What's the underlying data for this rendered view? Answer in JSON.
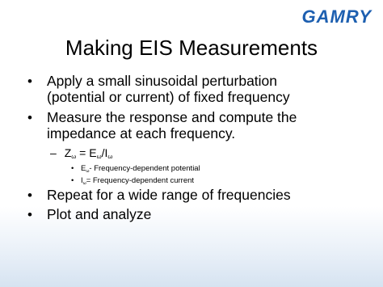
{
  "logo": "GAMRY",
  "title": "Making EIS Measurements",
  "bullets": [
    {
      "lines": [
        "Apply a small sinusoidal perturbation",
        "(potential or current) of fixed frequency"
      ]
    },
    {
      "lines": [
        "Measure the response and compute the",
        "impedance at each frequency."
      ]
    },
    {
      "lines": [
        "Repeat for a wide range of frequencies"
      ]
    },
    {
      "lines": [
        "Plot and analyze"
      ]
    }
  ],
  "formula": [
    "Z",
    "ω",
    " = E",
    "ω",
    "/I",
    "ω"
  ],
  "definitions": [
    {
      "symbol": "E",
      "subscript": "ω",
      "text": "- Frequency-dependent potential"
    },
    {
      "symbol": "I",
      "subscript": "ω",
      "text": "= Frequency-dependent current"
    }
  ]
}
